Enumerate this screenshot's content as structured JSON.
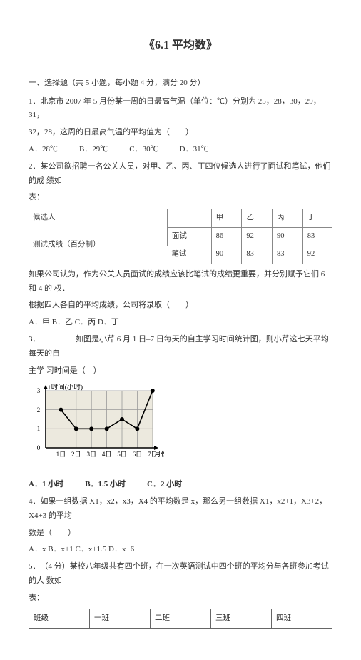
{
  "title": "《6.1 平均数》",
  "section1": "一、选择题（共 5 小题，每小题 4 分，满分 20 分）",
  "q1": {
    "line1": "1．北京市 2007 年 5 月份某一周的日最高气温（单位：℃）分别为 25，28，30，29，31，",
    "line2": "32，28，这周的日最高气温的平均值为（　　）",
    "optA": "A．28℃",
    "optB": "B．29℃",
    "optC": "C．30℃",
    "optD": "D．31℃"
  },
  "q2": {
    "line1": "2．某公司欲招聘一名公关人员，对甲、乙、丙、丁四位候选人进行了面试和笔试，他们的成 绩如",
    "line2": "表：",
    "table": {
      "r1": [
        "候选人",
        "",
        "甲",
        "乙",
        "丙",
        "丁"
      ],
      "r2": [
        "测试成绩（百分制）",
        "面试",
        "86",
        "92",
        "90",
        "83"
      ],
      "r3": [
        "",
        "笔试",
        "90",
        "83",
        "83",
        "92"
      ]
    },
    "after1": "如果公司认为，作为公关人员面试的成绩应该比笔试的成绩更重要，并分别赋予它们 6 和 4 的 权．",
    "after2": "根据四人各自的平均成绩，公司将录取（　　）",
    "ans": "A．甲 B．乙 C．丙 D．丁"
  },
  "q3": {
    "line1": "3．　　　　　如图是小芹 6 月 1 日–7 日每天的自主学习时间统计图，则小芹这七天平均每天的自",
    "line2": "主学 习时间是（　）",
    "ylab": "↑时间(小时)",
    "xlab": "月份",
    "xticks": [
      "0",
      "1日",
      "2日",
      "3日",
      "4日",
      "5日",
      "6日",
      "7日"
    ],
    "values": [
      2,
      1,
      1,
      1,
      1.5,
      1,
      3
    ],
    "ylim": [
      0,
      3
    ],
    "bg": "#ece9de",
    "line_color": "#000000",
    "dot_color": "#000000",
    "optA": "A．1 小时",
    "optB": "B．1.5 小时",
    "optC": "C．2 小时"
  },
  "q4": {
    "line1": "4．如果一组数据 X1，x2，x3，X4 的平均数是 x，那么另一组数据 X1，x2+1，X3+2，X4+3 的平均",
    "line2": "数是（　　）",
    "ans": "A．x  B．x+1  C．x+1.5  D．x+6"
  },
  "q5": {
    "line1": "5．　（4 分）某校八年级共有四个班，在一次英语测试中四个班的平均分与各班参加考试的人 数如",
    "line2": "表：",
    "table": {
      "header": [
        "班级",
        "一班",
        "二班",
        "三班",
        "四班"
      ]
    }
  }
}
